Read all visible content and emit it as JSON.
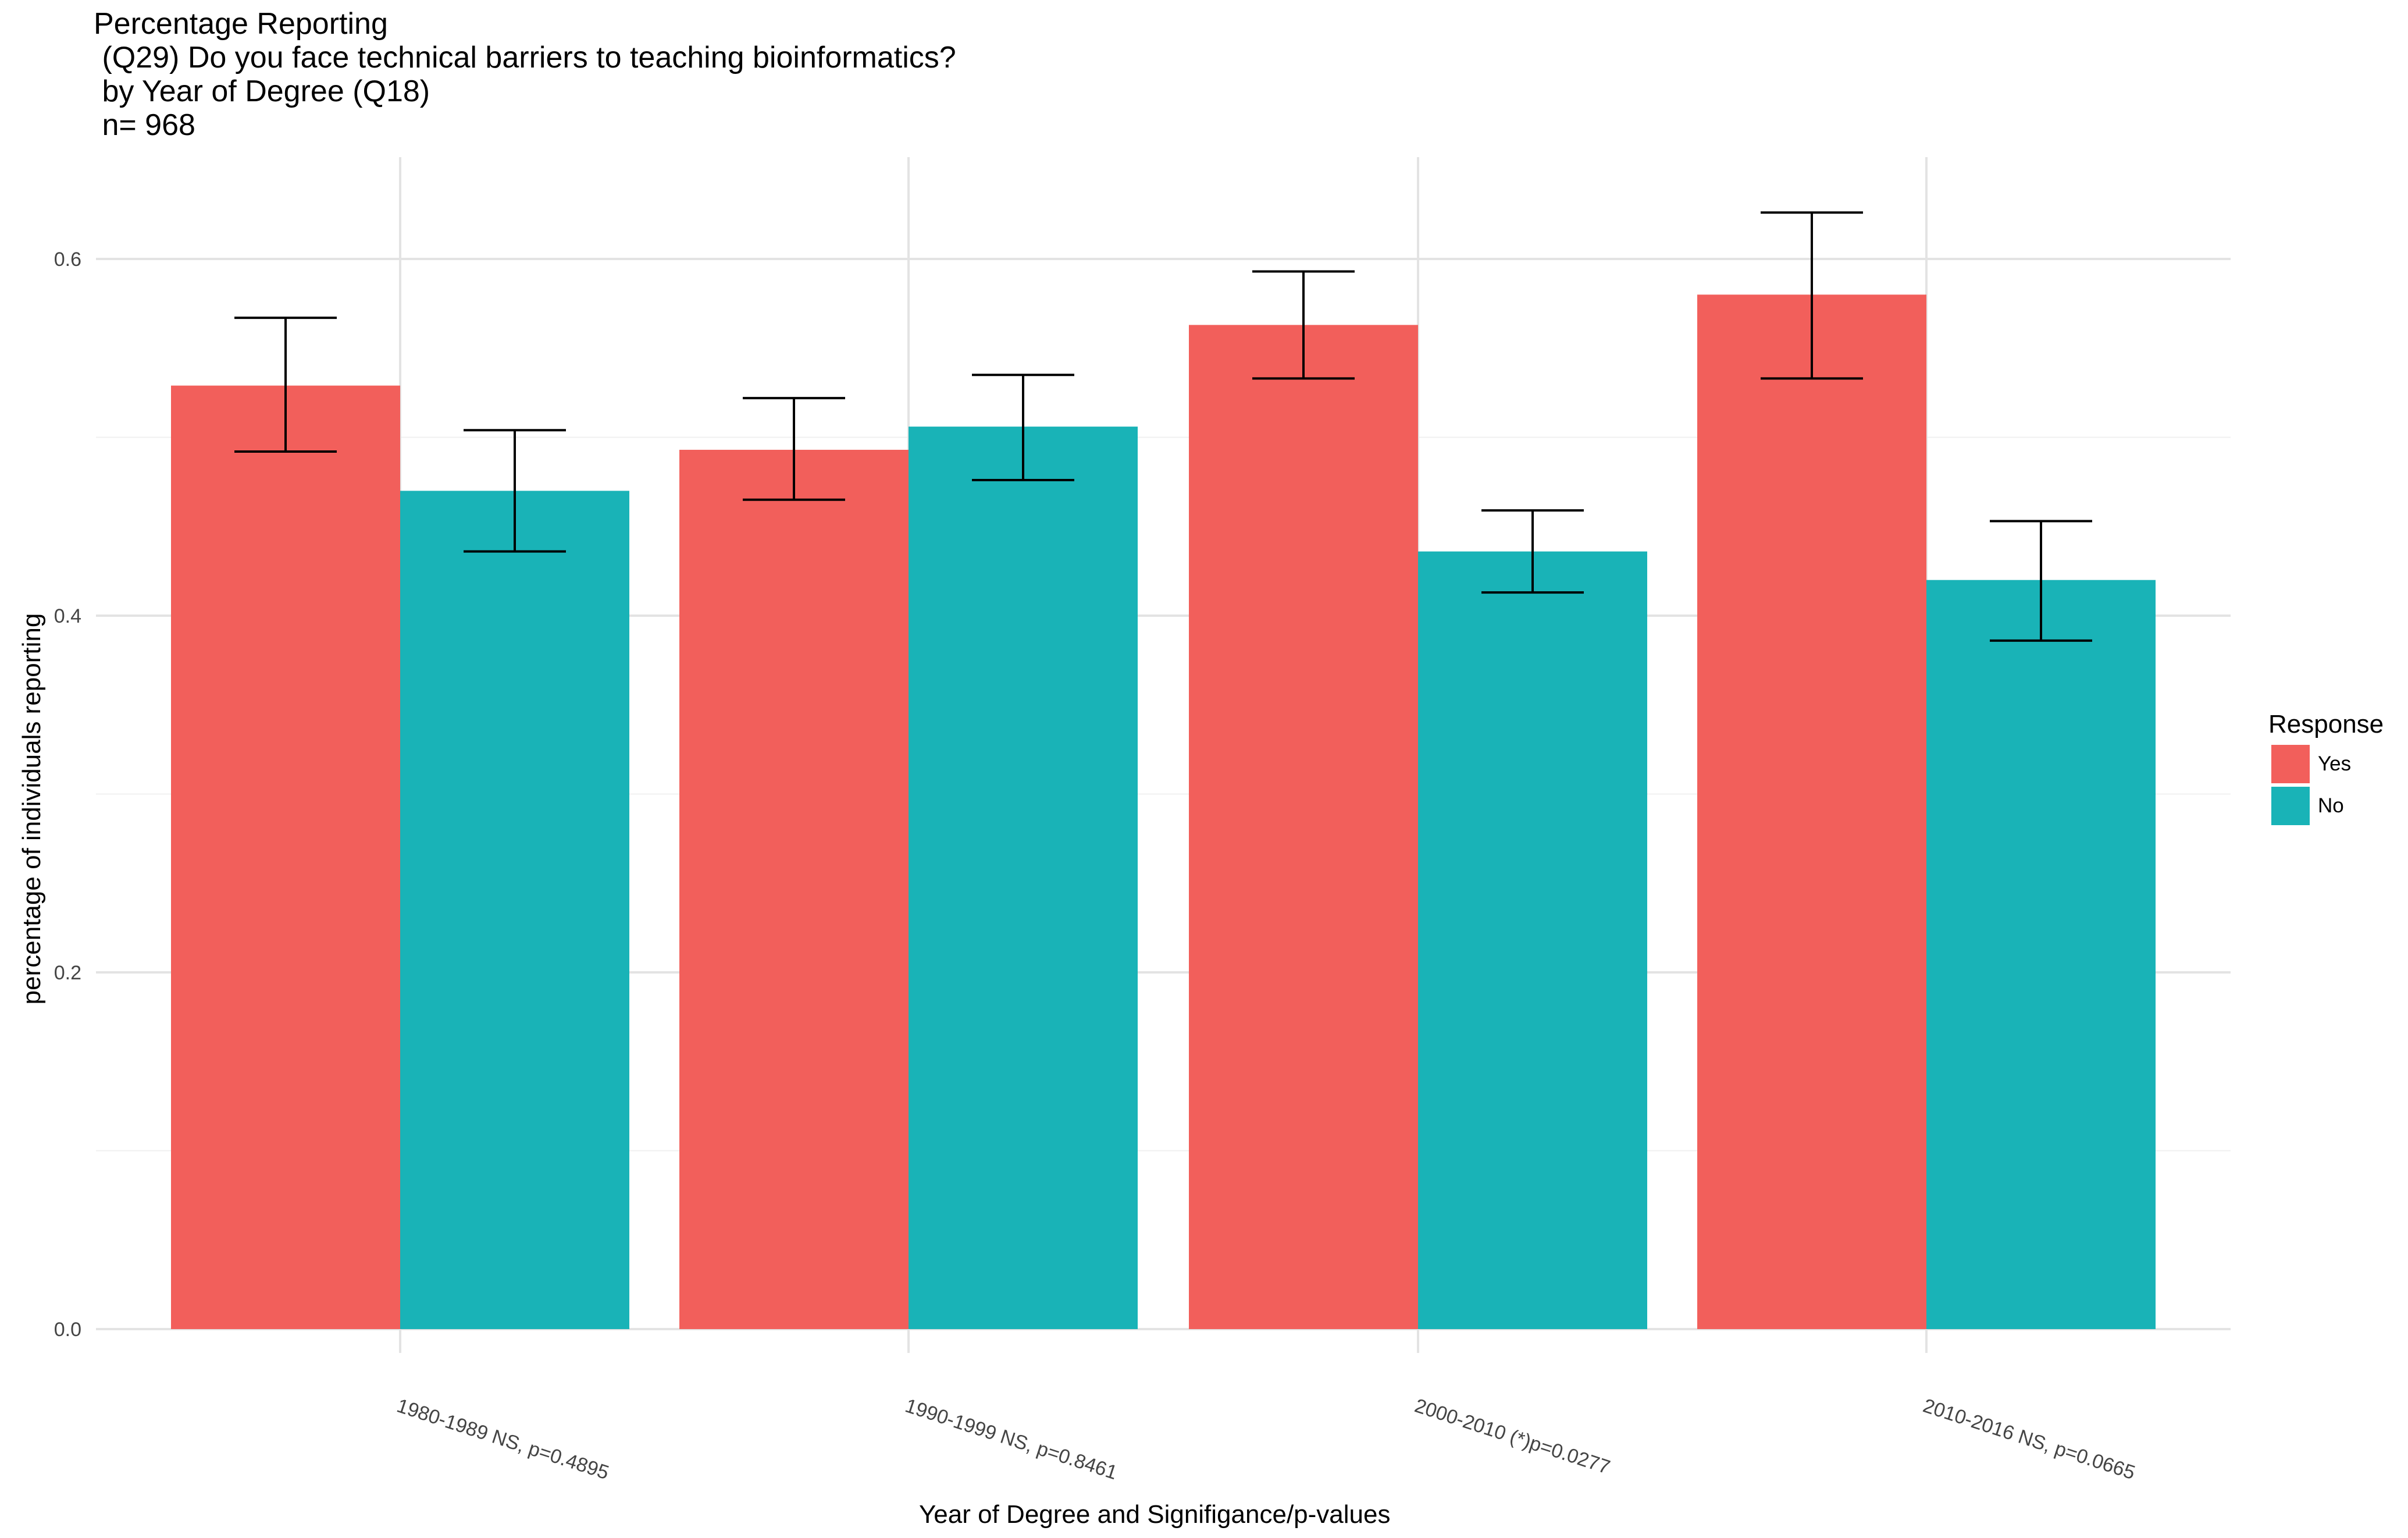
{
  "title": {
    "line1": "Percentage Reporting",
    "line2": " (Q29) Do you face technical barriers to teaching bioinformatics?",
    "line3": " by Year of Degree (Q18)",
    "line4": " n= 968"
  },
  "chart_data": {
    "type": "bar",
    "xlabel": "Year of Degree and Signifigance/p-values",
    "ylabel": "percentage of individuals reporting",
    "ylim": [
      0,
      0.65
    ],
    "yticks": [
      0.0,
      0.2,
      0.4,
      0.6
    ],
    "ytick_labels": [
      "0.0",
      "0.2",
      "0.4",
      "0.6"
    ],
    "grid": true,
    "legend_title": "Response",
    "legend_position": "right",
    "categories": [
      "1980-1989  NS, p=0.4895",
      "1990-1999  NS, p=0.8461",
      "2000-2010 (*)p=0.0277",
      "2010-2016  NS, p=0.0665"
    ],
    "series": [
      {
        "name": "Yes",
        "color": "#F25F5B",
        "values": [
          0.529,
          0.493,
          0.563,
          0.58
        ],
        "error_low": [
          0.492,
          0.465,
          0.533,
          0.533
        ],
        "error_high": [
          0.567,
          0.522,
          0.593,
          0.626
        ]
      },
      {
        "name": "No",
        "color": "#19B3B7",
        "values": [
          0.47,
          0.506,
          0.436,
          0.42
        ],
        "error_low": [
          0.436,
          0.476,
          0.413,
          0.386
        ],
        "error_high": [
          0.504,
          0.535,
          0.459,
          0.453
        ]
      }
    ]
  }
}
